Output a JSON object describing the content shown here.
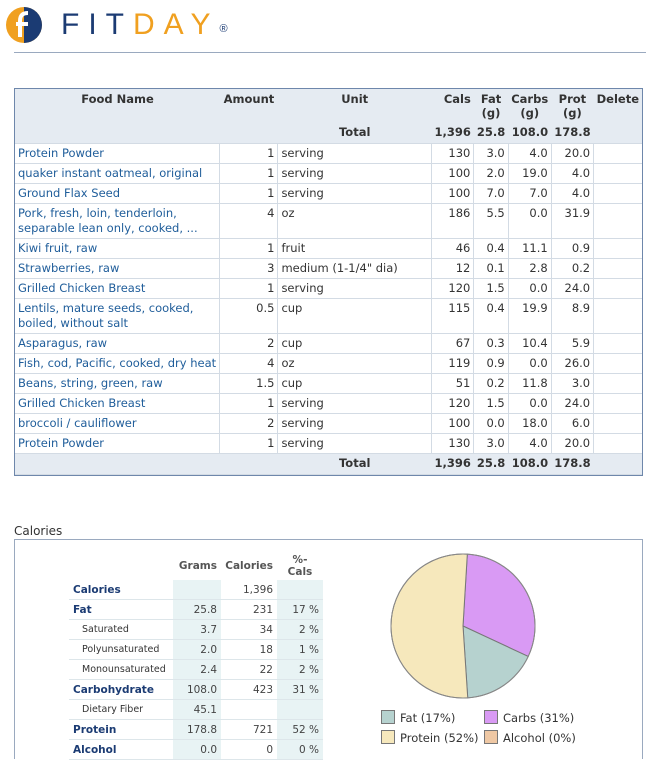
{
  "brand": {
    "name_pre": "FIT",
    "name_post": "DAY",
    "reg": "®",
    "accent": "#f0a020",
    "primary": "#1b3b73"
  },
  "food_table": {
    "headers": {
      "food_name": "Food Name",
      "amount": "Amount",
      "unit": "Unit",
      "cals": "Cals",
      "fat": "Fat",
      "fat_unit": "(g)",
      "carbs": "Carbs",
      "carbs_unit": "(g)",
      "prot": "Prot",
      "prot_unit": "(g)",
      "delete": "Delete"
    },
    "total": {
      "label": "Total",
      "cals": "1,396",
      "fat": "25.8",
      "carbs": "108.0",
      "prot": "178.8"
    },
    "rows": [
      {
        "name": "Protein Powder",
        "amount": "1",
        "unit": "serving",
        "cals": "130",
        "fat": "3.0",
        "carbs": "4.0",
        "prot": "20.0"
      },
      {
        "name": "quaker instant oatmeal, original",
        "amount": "1",
        "unit": "serving",
        "cals": "100",
        "fat": "2.0",
        "carbs": "19.0",
        "prot": "4.0"
      },
      {
        "name": "Ground Flax Seed",
        "amount": "1",
        "unit": "serving",
        "cals": "100",
        "fat": "7.0",
        "carbs": "7.0",
        "prot": "4.0"
      },
      {
        "name": "Pork, fresh, loin, tenderloin, separable lean only, cooked, ...",
        "amount": "4",
        "unit": "oz",
        "cals": "186",
        "fat": "5.5",
        "carbs": "0.0",
        "prot": "31.9"
      },
      {
        "name": "Kiwi fruit, raw",
        "amount": "1",
        "unit": "fruit",
        "cals": "46",
        "fat": "0.4",
        "carbs": "11.1",
        "prot": "0.9"
      },
      {
        "name": "Strawberries, raw",
        "amount": "3",
        "unit": "medium (1-1/4\" dia)",
        "cals": "12",
        "fat": "0.1",
        "carbs": "2.8",
        "prot": "0.2"
      },
      {
        "name": "Grilled Chicken Breast",
        "amount": "1",
        "unit": "serving",
        "cals": "120",
        "fat": "1.5",
        "carbs": "0.0",
        "prot": "24.0"
      },
      {
        "name": "Lentils, mature seeds, cooked, boiled, without salt",
        "amount": "0.5",
        "unit": "cup",
        "cals": "115",
        "fat": "0.4",
        "carbs": "19.9",
        "prot": "8.9"
      },
      {
        "name": "Asparagus, raw",
        "amount": "2",
        "unit": "cup",
        "cals": "67",
        "fat": "0.3",
        "carbs": "10.4",
        "prot": "5.9"
      },
      {
        "name": "Fish, cod, Pacific, cooked, dry heat",
        "amount": "4",
        "unit": "oz",
        "cals": "119",
        "fat": "0.9",
        "carbs": "0.0",
        "prot": "26.0"
      },
      {
        "name": "Beans, string, green, raw",
        "amount": "1.5",
        "unit": "cup",
        "cals": "51",
        "fat": "0.2",
        "carbs": "11.8",
        "prot": "3.0"
      },
      {
        "name": "Grilled Chicken Breast",
        "amount": "1",
        "unit": "serving",
        "cals": "120",
        "fat": "1.5",
        "carbs": "0.0",
        "prot": "24.0"
      },
      {
        "name": "broccoli / cauliflower",
        "amount": "2",
        "unit": "serving",
        "cals": "100",
        "fat": "0.0",
        "carbs": "18.0",
        "prot": "6.0"
      },
      {
        "name": "Protein Powder",
        "amount": "1",
        "unit": "serving",
        "cals": "130",
        "fat": "3.0",
        "carbs": "4.0",
        "prot": "20.0"
      }
    ]
  },
  "calories_panel": {
    "title": "Calories",
    "headers": {
      "grams": "Grams",
      "calories": "Calories",
      "pct": "%-Cals"
    },
    "rows": [
      {
        "label": "Calories",
        "grams": "",
        "cals": "1,396",
        "pct": "",
        "sub": false
      },
      {
        "label": "Fat",
        "grams": "25.8",
        "cals": "231",
        "pct": "17 %",
        "sub": false
      },
      {
        "label": "Saturated",
        "grams": "3.7",
        "cals": "34",
        "pct": "2 %",
        "sub": true
      },
      {
        "label": "Polyunsaturated",
        "grams": "2.0",
        "cals": "18",
        "pct": "1 %",
        "sub": true
      },
      {
        "label": "Monounsaturated",
        "grams": "2.4",
        "cals": "22",
        "pct": "2 %",
        "sub": true
      },
      {
        "label": "Carbohydrate",
        "grams": "108.0",
        "cals": "423",
        "pct": "31 %",
        "sub": false
      },
      {
        "label": "Dietary Fiber",
        "grams": "45.1",
        "cals": "",
        "pct": "",
        "sub": true
      },
      {
        "label": "Protein",
        "grams": "178.8",
        "cals": "721",
        "pct": "52 %",
        "sub": false
      },
      {
        "label": "Alcohol",
        "grams": "0.0",
        "cals": "0",
        "pct": "0 %",
        "sub": false
      }
    ]
  },
  "chart_data": {
    "type": "pie",
    "categories": [
      "Fat",
      "Carbs",
      "Protein",
      "Alcohol"
    ],
    "values": [
      17,
      31,
      52,
      0
    ],
    "colors": [
      "#b6d2cf",
      "#d99af4",
      "#f6e8bc",
      "#efc8a4"
    ],
    "legend": [
      "Fat (17%)",
      "Carbs (31%)",
      "Protein (52%)",
      "Alcohol (0%)"
    ],
    "legend_position": "bottom"
  }
}
